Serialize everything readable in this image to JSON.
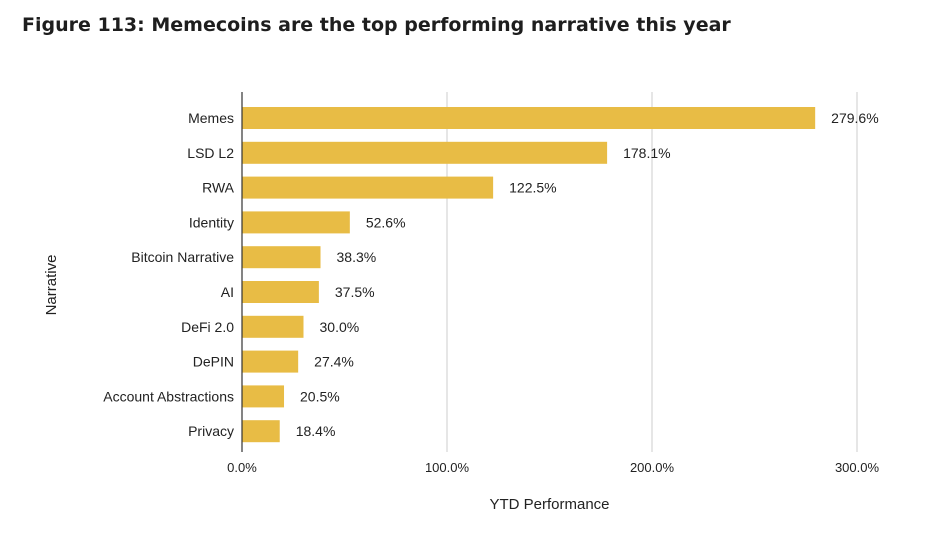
{
  "figure_title": "Figure 113: Memecoins are the top performing narrative this year",
  "colors": {
    "bar": "#E8BC45",
    "grid": "#CCCCCC",
    "axis": "#333333",
    "text": "#222222"
  },
  "chart_data": {
    "type": "bar",
    "orientation": "horizontal",
    "title": "Figure 113: Memecoins are the top performing narrative this year",
    "xlabel": "YTD Performance",
    "ylabel": "Narrative",
    "categories": [
      "Memes",
      "LSD L2",
      "RWA",
      "Identity",
      "Bitcoin Narrative",
      "AI",
      "DeFi 2.0",
      "DePIN",
      "Account Abstractions",
      "Privacy"
    ],
    "values": [
      279.6,
      178.1,
      122.5,
      52.6,
      38.3,
      37.5,
      30.0,
      27.4,
      20.5,
      18.4
    ],
    "value_labels": [
      "279.6%",
      "178.1%",
      "122.5%",
      "52.6%",
      "38.3%",
      "37.5%",
      "30.0%",
      "27.4%",
      "20.5%",
      "18.4%"
    ],
    "xlim": [
      0,
      300
    ],
    "xticks": [
      0,
      100,
      200,
      300
    ],
    "xtick_labels": [
      "0.0%",
      "100.0%",
      "200.0%",
      "300.0%"
    ],
    "grid": true,
    "legend": "none"
  }
}
